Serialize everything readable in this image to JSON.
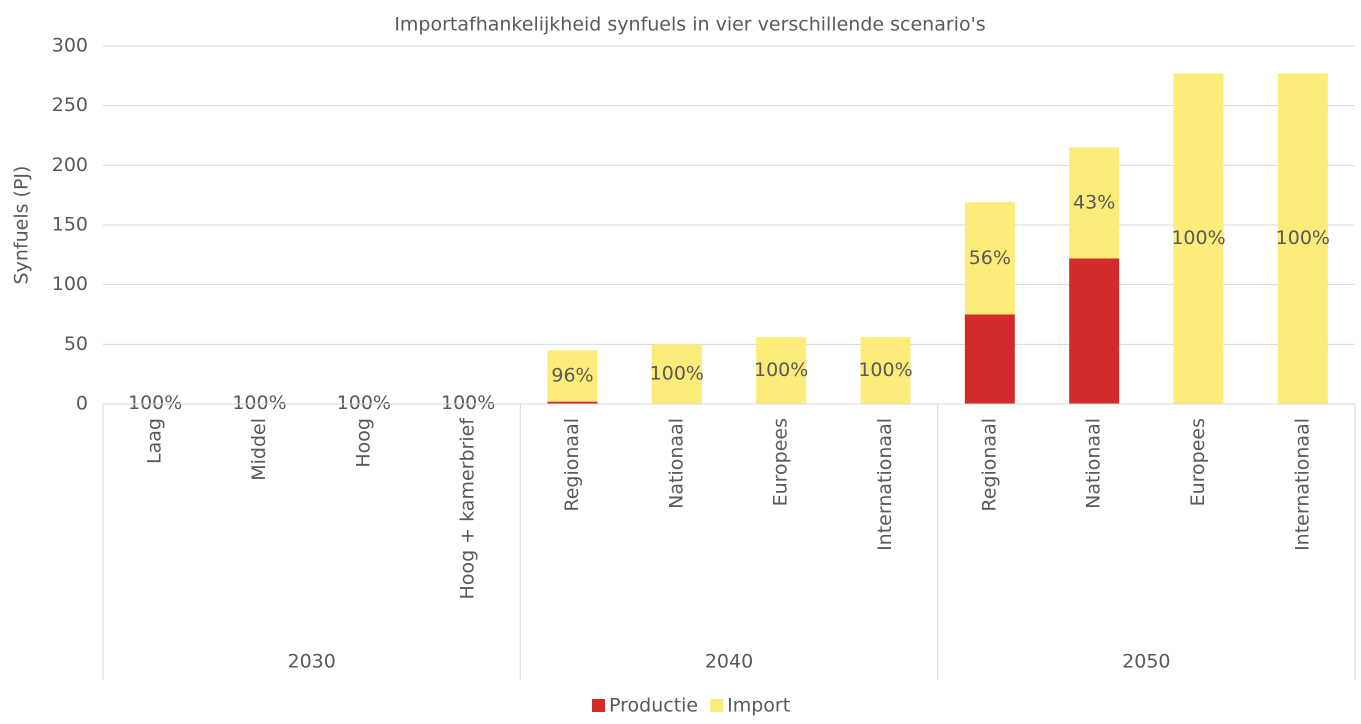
{
  "chart_data": {
    "type": "stacked_bar",
    "title": "Importafhankelijkheid synfuels in vier verschillende scenario's",
    "y_label": "Synfuels (PJ)",
    "groups": [
      {
        "name": "2030",
        "categories": [
          "Laag",
          "Middel",
          "Hoog",
          "Hoog + kamerbrief"
        ]
      },
      {
        "name": "2040",
        "categories": [
          "Regionaal",
          "Nationaal",
          "Europees",
          "Internationaal"
        ]
      },
      {
        "name": "2050",
        "categories": [
          "Regionaal",
          "Nationaal",
          "Europees",
          "Internationaal"
        ]
      }
    ],
    "series": [
      {
        "name": "Productie",
        "color": "#d22b2b",
        "values": [
          0,
          0,
          0,
          0,
          2,
          0,
          0,
          0,
          75,
          122,
          0,
          0
        ]
      },
      {
        "name": "Import",
        "color": "#fdec79",
        "values": [
          0.5,
          0.5,
          0.5,
          0.5,
          43,
          50,
          56,
          56,
          94,
          93,
          277,
          277
        ],
        "share_labels": [
          "100%",
          "100%",
          "100%",
          "100%",
          "96%",
          "100%",
          "100%",
          "100%",
          "56%",
          "43%",
          "100%",
          "100%"
        ]
      }
    ],
    "ylim": [
      0,
      300
    ],
    "yticks": [
      0,
      50,
      100,
      150,
      200,
      250,
      300
    ],
    "grid": true,
    "legend": "bottom"
  }
}
